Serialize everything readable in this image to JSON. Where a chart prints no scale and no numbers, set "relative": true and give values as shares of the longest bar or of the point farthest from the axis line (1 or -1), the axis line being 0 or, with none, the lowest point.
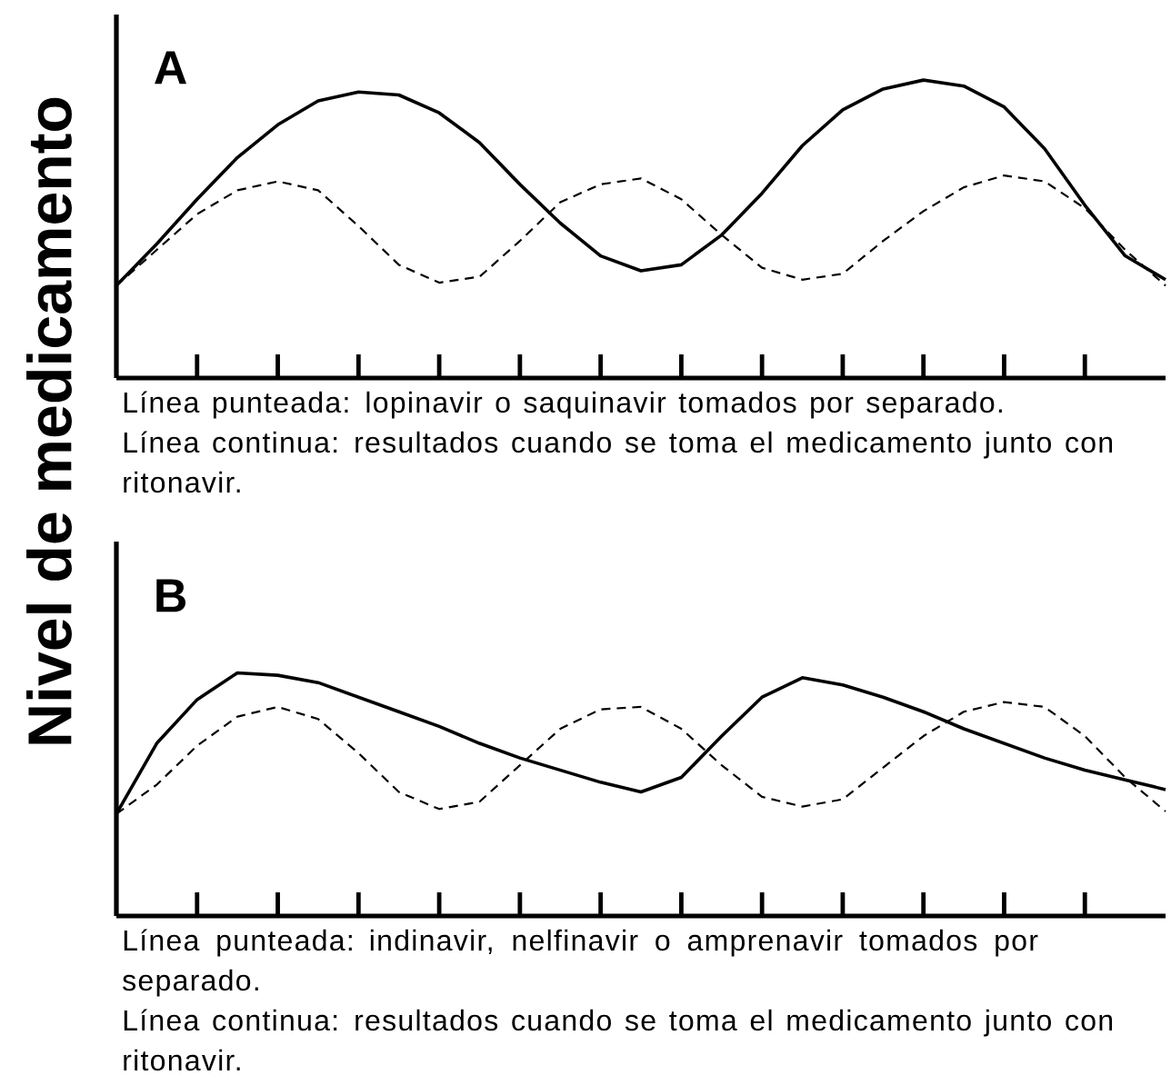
{
  "chart_data": [
    {
      "type": "line",
      "relative": true,
      "title": "A",
      "ylabel": "Nivel de medicamento",
      "categories": [
        null,
        null,
        null,
        null,
        null,
        null,
        null,
        null,
        null,
        null,
        null,
        null,
        null,
        null,
        null,
        null,
        null,
        null,
        null,
        null,
        null,
        null,
        null,
        null,
        null,
        null,
        null
      ],
      "annotations": [
        "Línea punteada: lopinavir o saquinavir tomados por separado.",
        "Línea continua: resultados cuando se toma el medicamento junto con ritonavir."
      ],
      "series": [
        {
          "color": "#000000",
          "line_style": "solid",
          "values": [
            0.31,
            0.45,
            0.6,
            0.74,
            0.85,
            0.93,
            0.96,
            0.95,
            0.89,
            0.79,
            0.65,
            0.52,
            0.41,
            0.36,
            0.38,
            0.48,
            0.62,
            0.78,
            0.9,
            0.97,
            1,
            0.98,
            0.91,
            0.77,
            0.58,
            0.41,
            0.33
          ]
        },
        {
          "color": "#000000",
          "line_style": "dashed",
          "values": [
            0.31,
            0.43,
            0.55,
            0.63,
            0.66,
            0.63,
            0.51,
            0.38,
            0.32,
            0.34,
            0.46,
            0.59,
            0.65,
            0.67,
            0.6,
            0.48,
            0.37,
            0.33,
            0.35,
            0.46,
            0.56,
            0.64,
            0.68,
            0.66,
            0.57,
            0.43,
            0.31
          ]
        }
      ]
    },
    {
      "type": "line",
      "relative": true,
      "title": "B",
      "categories": [
        null,
        null,
        null,
        null,
        null,
        null,
        null,
        null,
        null,
        null,
        null,
        null,
        null,
        null,
        null,
        null,
        null,
        null,
        null,
        null,
        null,
        null,
        null,
        null,
        null,
        null,
        null
      ],
      "annotations": [
        "Línea punteada: indinavir, nelfinavir o amprenavir tomados por separado.",
        "Línea continua: resultados cuando se toma el medicamento junto con ritonavir."
      ],
      "series": [
        {
          "color": "#000000",
          "line_style": "solid",
          "values": [
            0.42,
            0.71,
            0.89,
            1,
            0.99,
            0.96,
            0.9,
            0.84,
            0.78,
            0.71,
            0.65,
            0.6,
            0.55,
            0.51,
            0.57,
            0.74,
            0.9,
            0.98,
            0.95,
            0.9,
            0.84,
            0.77,
            0.71,
            0.65,
            0.6,
            0.56,
            0.52
          ]
        },
        {
          "color": "#000000",
          "line_style": "dashed",
          "values": [
            0.42,
            0.54,
            0.7,
            0.82,
            0.86,
            0.81,
            0.67,
            0.51,
            0.44,
            0.47,
            0.62,
            0.77,
            0.85,
            0.86,
            0.77,
            0.62,
            0.49,
            0.45,
            0.48,
            0.61,
            0.74,
            0.84,
            0.88,
            0.86,
            0.74,
            0.57,
            0.43
          ]
        }
      ]
    }
  ]
}
